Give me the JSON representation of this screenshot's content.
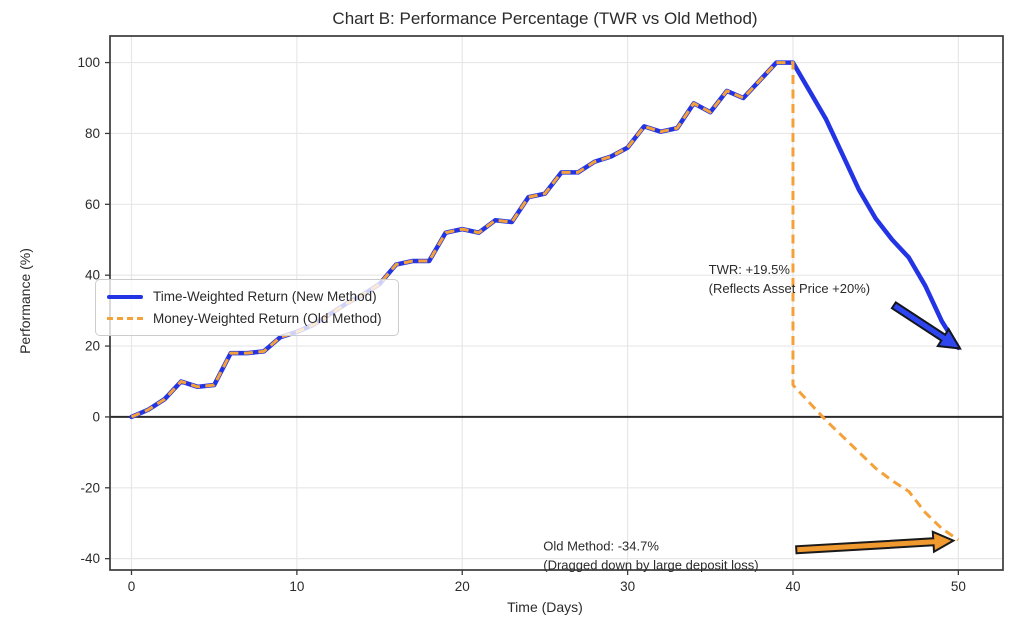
{
  "chart_data": {
    "type": "line",
    "title": "Chart B: Performance Percentage (TWR vs Old Method)",
    "xlabel": "Time (Days)",
    "ylabel": "Performance (%)",
    "xlim": [
      -1.3,
      52.7
    ],
    "ylim": [
      -43.2,
      107.5
    ],
    "xticks": [
      0,
      10,
      20,
      30,
      40,
      50
    ],
    "yticks": [
      -40,
      -20,
      0,
      20,
      40,
      60,
      80,
      100
    ],
    "grid": true,
    "zero_line_y": 0,
    "legend_position": "center-left",
    "series": [
      {
        "name": "Time-Weighted Return (New Method)",
        "color": "#2334e4",
        "style": "solid",
        "width": 4.5,
        "x": [
          0,
          1,
          2,
          3,
          4,
          5,
          6,
          7,
          8,
          9,
          10,
          11,
          12,
          13,
          14,
          15,
          16,
          17,
          18,
          19,
          20,
          21,
          22,
          23,
          24,
          25,
          26,
          27,
          28,
          29,
          30,
          31,
          32,
          33,
          34,
          35,
          36,
          37,
          38,
          39,
          40,
          41,
          42,
          43,
          44,
          45,
          46,
          47,
          48,
          49,
          50
        ],
        "y": [
          0,
          2,
          5,
          10,
          8.5,
          9,
          18,
          18,
          18.5,
          22.5,
          24,
          26,
          29,
          32,
          34.5,
          37.5,
          43,
          44,
          44,
          52,
          53,
          52,
          55.5,
          55,
          62,
          63,
          69,
          69,
          72,
          73.5,
          76,
          82,
          80.5,
          81.5,
          88.5,
          86,
          92,
          90,
          95,
          100,
          100,
          92,
          84,
          74,
          64,
          56,
          50,
          45,
          37,
          27,
          19.5
        ]
      },
      {
        "name": "Money-Weighted Return (Old Method)",
        "color": "#f5a13a",
        "style": "dashed",
        "width": 3,
        "x": [
          0,
          1,
          2,
          3,
          4,
          5,
          6,
          7,
          8,
          9,
          10,
          11,
          12,
          13,
          14,
          15,
          16,
          17,
          18,
          19,
          20,
          21,
          22,
          23,
          24,
          25,
          26,
          27,
          28,
          29,
          30,
          31,
          32,
          33,
          34,
          35,
          36,
          37,
          38,
          39,
          40,
          40,
          41,
          42,
          43,
          44,
          45,
          46,
          47,
          48,
          49,
          50
        ],
        "y": [
          0,
          2,
          5,
          10,
          8.5,
          9,
          18,
          18,
          18.5,
          22.5,
          24,
          26,
          29,
          32,
          34.5,
          37.5,
          43,
          44,
          44,
          52,
          53,
          52,
          55.5,
          55,
          62,
          63,
          69,
          69,
          72,
          73.5,
          76,
          82,
          80.5,
          81.5,
          88.5,
          86,
          92,
          90,
          95,
          100,
          100,
          9,
          4,
          -1,
          -5.5,
          -10,
          -14.5,
          -18,
          -21,
          -27,
          -31.5,
          -34.7
        ]
      }
    ],
    "annotations": [
      {
        "id": "twr-annotation",
        "lines": [
          "TWR: +19.5%",
          "(Reflects Asset Price +20%)"
        ],
        "text_x": 34.9,
        "text_y": 43.5,
        "arrow": {
          "tail_x": 46.1,
          "tail_y": 31.5,
          "head_x": 50.1,
          "head_y": 19.3,
          "fill": "#2e46f0",
          "edge": "#15151f"
        }
      },
      {
        "id": "old-method-annotation",
        "lines": [
          "Old Method: -34.7%",
          "(Dragged down by large deposit loss)"
        ],
        "text_x": 24.9,
        "text_y": -34.6,
        "arrow": {
          "tail_x": 40.2,
          "tail_y": -37.5,
          "head_x": 49.7,
          "head_y": -34.9,
          "fill": "#f0992e",
          "edge": "#1a1a1a"
        }
      }
    ],
    "colors": {
      "grid": "#e7e7e7",
      "spine": "#3a3a3a",
      "zero_line": "#2b2b2b",
      "tick_label": "#333333",
      "title": "#1d1d1d",
      "annotation_text": "#2b2b2b"
    }
  }
}
